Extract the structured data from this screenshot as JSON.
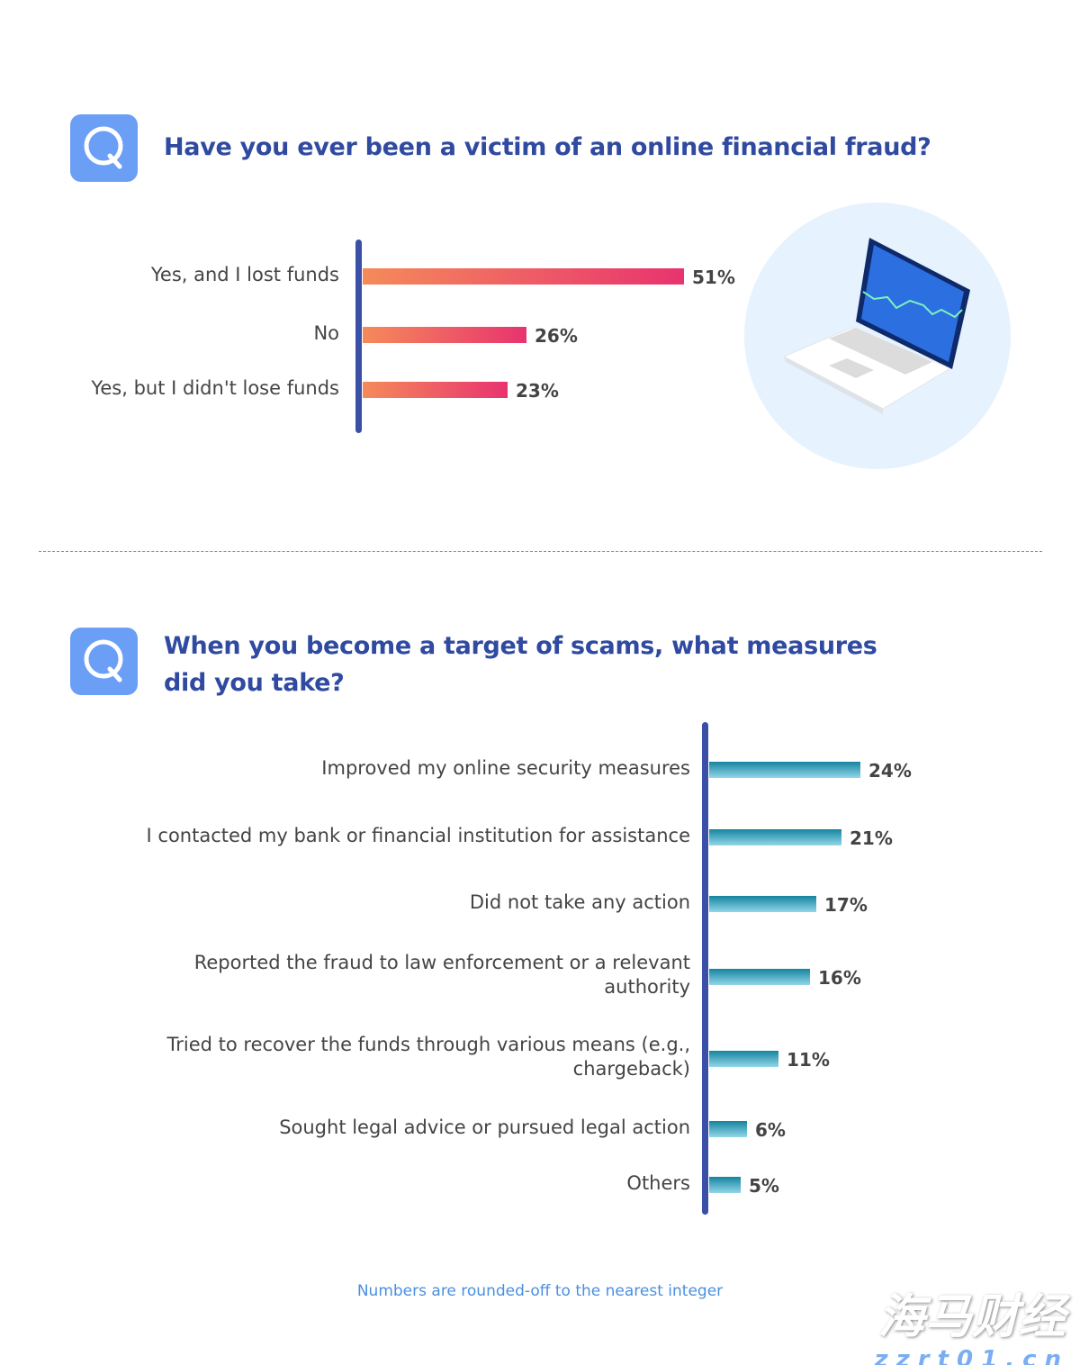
{
  "colors": {
    "title": "#2f4aa0",
    "axis": "#3a4fa6",
    "bar1_start": "#f58a5a",
    "bar1_end": "#e8336f",
    "bar2_top": "#15849f",
    "bar2_bottom": "#93d6e8",
    "footnote": "#4a8fe0",
    "q_icon": "#6a9ff5"
  },
  "q_icon": "magnifier-q-icon",
  "footnote": "Numbers are rounded-off to the nearest integer",
  "watermark": {
    "brand": "海马财经",
    "domain": "zzrt01.cn"
  },
  "chart_data": [
    {
      "type": "bar",
      "orientation": "horizontal",
      "title": "Have you ever been a victim of an online financial fraud?",
      "categories": [
        "Yes, and I lost funds",
        "No",
        "Yes, but I didn't lose funds"
      ],
      "values": [
        51,
        26,
        23
      ],
      "labels": [
        "51%",
        "26%",
        "23%"
      ],
      "unit": "%",
      "grid": false
    },
    {
      "type": "bar",
      "orientation": "horizontal",
      "title": "When you become a target of scams, what measures did you take?",
      "categories": [
        "Improved my online security measures",
        "I contacted my bank or financial institution for assistance",
        "Did not take any action",
        "Reported the fraud to law enforcement or a relevant authority",
        "Tried to recover the funds through various means (e.g., chargeback)",
        "Sought legal advice or pursued legal action",
        "Others"
      ],
      "values": [
        24,
        21,
        17,
        16,
        11,
        6,
        5
      ],
      "labels": [
        "24%",
        "21%",
        "17%",
        "16%",
        "11%",
        "6%",
        "5%"
      ],
      "unit": "%",
      "grid": false
    }
  ]
}
